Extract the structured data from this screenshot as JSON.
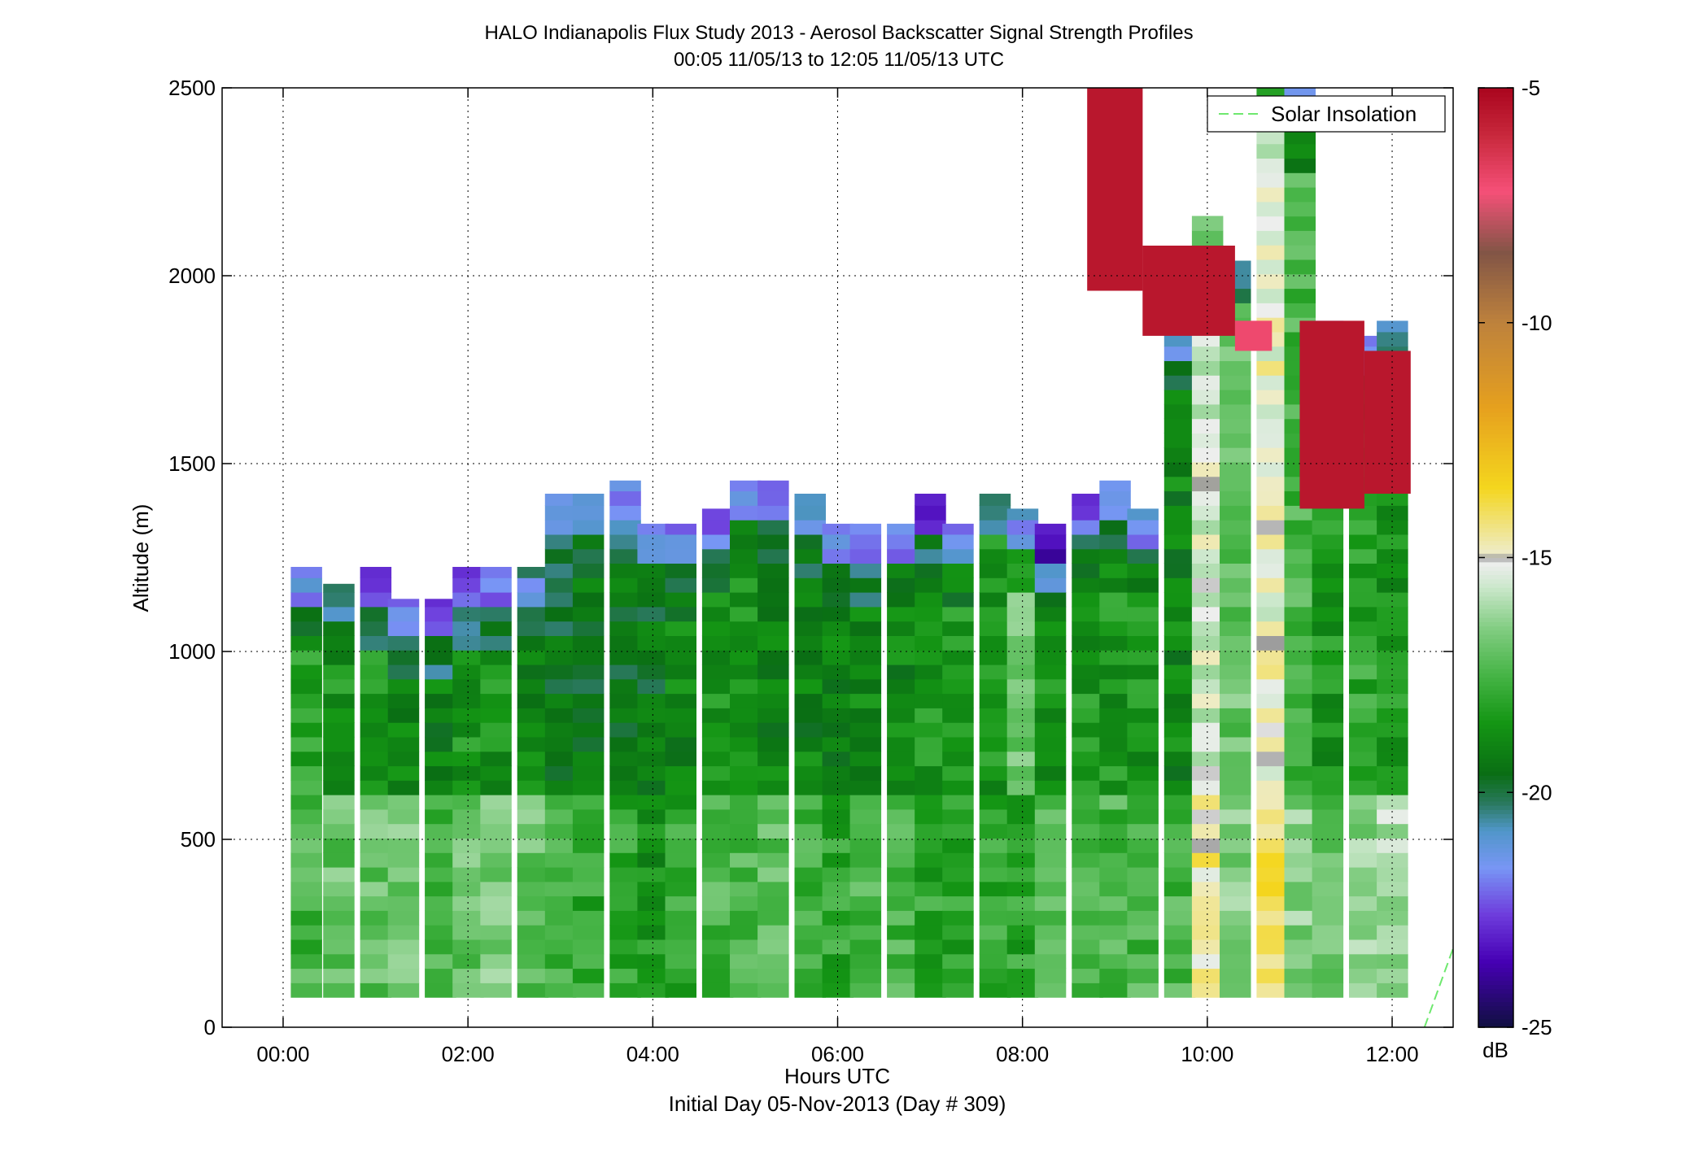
{
  "chart_data": {
    "type": "heatmap",
    "title": "HALO Indianapolis Flux Study 2013 - Aerosol Backscatter Signal Strength Profiles",
    "subtitle": "00:05 11/05/13 to 12:05 11/05/13  UTC",
    "xlabel": "Hours UTC",
    "xlabel2": "Initial Day 05-Nov-2013 (Day # 309)",
    "ylabel": "Altitude (m)",
    "xlim": [
      -0.66,
      12.66
    ],
    "ylim": [
      0,
      2500
    ],
    "x_ticks": [
      0,
      2,
      4,
      6,
      8,
      10,
      12
    ],
    "x_tick_labels": [
      "00:00",
      "02:00",
      "04:00",
      "06:00",
      "08:00",
      "10:00",
      "12:00"
    ],
    "y_ticks": [
      0,
      500,
      1000,
      1500,
      2000,
      2500
    ],
    "y_tick_labels": [
      "0",
      "500",
      "1000",
      "1500",
      "2000",
      "2500"
    ],
    "grid": true,
    "legend": {
      "position": "top-right",
      "entries": [
        "Solar Insolation"
      ]
    },
    "colorbar": {
      "label": "dB",
      "range": [
        -25,
        -5
      ],
      "ticks": [
        -5,
        -10,
        -15,
        -20,
        -25
      ],
      "tick_labels": [
        "-5",
        "-10",
        "-15",
        "-20",
        "-25"
      ]
    },
    "cell_time_step_hours": 0.3333,
    "cell_height_m": 38.5,
    "first_profile_time_hours": 0.25,
    "profiles": [
      {
        "time": 0.25,
        "top": 1225,
        "lower_band": -17.5,
        "mid_band": -18,
        "near_cloud_top": -21.5
      },
      {
        "time": 0.6,
        "top": 1180,
        "lower_band": -17,
        "mid_band": -18.5,
        "near_cloud_top": -21
      },
      {
        "time": 1.0,
        "top": 1225,
        "lower_band": -17,
        "mid_band": -18.5,
        "near_cloud_top": -22.5
      },
      {
        "time": 1.3,
        "top": 1140,
        "lower_band": -16.8,
        "mid_band": -19,
        "near_cloud_top": -22
      },
      {
        "time": 1.7,
        "top": 1140,
        "lower_band": -17.5,
        "mid_band": -19,
        "near_cloud_top": -22.5
      },
      {
        "time": 2.0,
        "top": 1225,
        "lower_band": -17,
        "mid_band": -18.5,
        "near_cloud_top": -22.5
      },
      {
        "time": 2.3,
        "top": 1225,
        "lower_band": -16.5,
        "mid_band": -18.5,
        "near_cloud_top": -22
      },
      {
        "time": 2.7,
        "top": 1225,
        "lower_band": -17,
        "mid_band": -19,
        "near_cloud_top": -21
      },
      {
        "time": 3.0,
        "top": 1420,
        "lower_band": -17.5,
        "mid_band": -19.5,
        "near_cloud_top": -21.5
      },
      {
        "time": 3.3,
        "top": 1420,
        "lower_band": -18,
        "mid_band": -19.5,
        "near_cloud_top": -21.5
      },
      {
        "time": 3.7,
        "top": 1455,
        "lower_band": -18,
        "mid_band": -19.5,
        "near_cloud_top": -22
      },
      {
        "time": 4.0,
        "top": 1340,
        "lower_band": -18.5,
        "mid_band": -19.5,
        "near_cloud_top": -21.5
      },
      {
        "time": 4.3,
        "top": 1340,
        "lower_band": -18,
        "mid_band": -19,
        "near_cloud_top": -21.5
      },
      {
        "time": 4.7,
        "top": 1380,
        "lower_band": -17.5,
        "mid_band": -18.5,
        "near_cloud_top": -22
      },
      {
        "time": 5.0,
        "top": 1455,
        "lower_band": -17.5,
        "mid_band": -18.5,
        "near_cloud_top": -22
      },
      {
        "time": 5.3,
        "top": 1455,
        "lower_band": -17,
        "mid_band": -19,
        "near_cloud_top": -21.5
      },
      {
        "time": 5.7,
        "top": 1420,
        "lower_band": -17.5,
        "mid_band": -19,
        "near_cloud_top": -21.5
      },
      {
        "time": 6.0,
        "top": 1340,
        "lower_band": -18,
        "mid_band": -19,
        "near_cloud_top": -21.5
      },
      {
        "time": 6.3,
        "top": 1340,
        "lower_band": -17.5,
        "mid_band": -19,
        "near_cloud_top": -22
      },
      {
        "time": 6.7,
        "top": 1340,
        "lower_band": -17.5,
        "mid_band": -19,
        "near_cloud_top": -21.5
      },
      {
        "time": 7.0,
        "top": 1420,
        "lower_band": -18,
        "mid_band": -18.5,
        "near_cloud_top": -22.5
      },
      {
        "time": 7.3,
        "top": 1340,
        "lower_band": -18,
        "mid_band": -18.5,
        "near_cloud_top": -21.5
      },
      {
        "time": 7.7,
        "top": 1420,
        "lower_band": -18,
        "mid_band": -18.5,
        "near_cloud_top": -20
      },
      {
        "time": 8.0,
        "top": 1380,
        "lower_band": -18,
        "mid_band": -17,
        "near_cloud_top": -21.5
      },
      {
        "time": 8.3,
        "top": 1340,
        "lower_band": -17.5,
        "mid_band": -18.5,
        "near_cloud_top": -23.5
      },
      {
        "time": 8.7,
        "top": 1420,
        "lower_band": -17.5,
        "mid_band": -18.5,
        "near_cloud_top": -22.5
      },
      {
        "time": 9.0,
        "top": 1455,
        "lower_band": -17.5,
        "mid_band": -18.5,
        "near_cloud_top": -22
      },
      {
        "time": 9.3,
        "top": 1380,
        "lower_band": -17.5,
        "mid_band": -18.5,
        "near_cloud_top": -21.5
      },
      {
        "time": 9.7,
        "top": 1880,
        "lower_band": -17.5,
        "mid_band": -19,
        "near_cloud_top": -21
      },
      {
        "time": 10.0,
        "top": 2160,
        "lower_band": -14.5,
        "mid_band": -15.5,
        "near_cloud_top": -17
      },
      {
        "time": 10.3,
        "top": 2040,
        "lower_band": -16.5,
        "mid_band": -17,
        "near_cloud_top": -20
      },
      {
        "time": 10.7,
        "top": 2500,
        "lower_band": -14,
        "mid_band": -15,
        "near_cloud_top": -17.5
      },
      {
        "time": 11.0,
        "top": 2500,
        "lower_band": -16.5,
        "mid_band": -17.5,
        "near_cloud_top": -21.5
      },
      {
        "time": 11.3,
        "top": 1880,
        "lower_band": -17,
        "mid_band": -18.5,
        "near_cloud_top": -21
      },
      {
        "time": 11.7,
        "top": 1840,
        "lower_band": -16.5,
        "mid_band": -18,
        "near_cloud_top": -21.5
      },
      {
        "time": 12.0,
        "top": 1880,
        "lower_band": -16,
        "mid_band": -18.5,
        "near_cloud_top": -21
      }
    ],
    "elevated_layers": [
      {
        "start_time": 8.7,
        "end_time": 9.3,
        "bottom": 1960,
        "top": 2500,
        "value": -5.5
      },
      {
        "start_time": 9.3,
        "end_time": 10.3,
        "bottom": 1840,
        "top": 2080,
        "value": -5.5
      },
      {
        "start_time": 10.3,
        "end_time": 10.7,
        "bottom": 1800,
        "top": 1880,
        "value": -7
      },
      {
        "start_time": 11.0,
        "end_time": 11.7,
        "bottom": 1380,
        "top": 1880,
        "value": -5.5
      },
      {
        "start_time": 11.7,
        "end_time": 12.2,
        "bottom": 1420,
        "top": 1800,
        "value": -5.5
      }
    ],
    "solar_insolation": [
      {
        "x": 12.35,
        "y": 0
      },
      {
        "x": 12.66,
        "y": 210
      }
    ]
  }
}
